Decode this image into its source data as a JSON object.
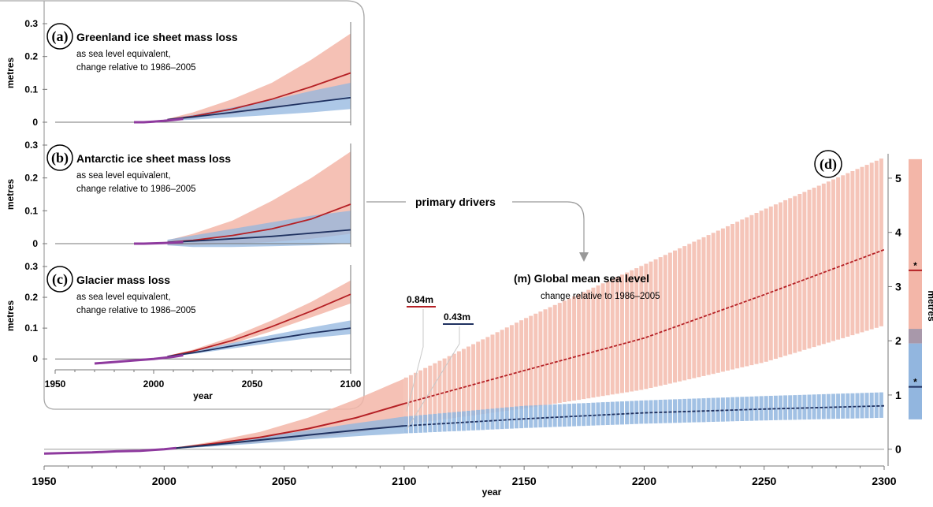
{
  "colors": {
    "high_line": "#b52025",
    "high_band": "#f3b6a8",
    "low_line": "#1f3160",
    "low_band": "#92b6df",
    "overlap_band": "#a898aa",
    "observed": "#8e3a9e",
    "panel_border": "#a8a8a8"
  },
  "annotations": {
    "primary_drivers": "primary drivers",
    "value_high": "0.84m",
    "value_low": "0.43m",
    "star": "*"
  },
  "chart_data": [
    {
      "id": "a",
      "type": "area",
      "panel_letter": "(a)",
      "title": "Greenland ice sheet mass loss",
      "subtitle": [
        "as sea level equivalent,",
        "change relative to 1986–2005"
      ],
      "ylabel": "metres",
      "xlabel": "",
      "xlim": [
        1950,
        2100
      ],
      "ylim": [
        0,
        0.3
      ],
      "xticks": [
        1950,
        2000,
        2050,
        2100
      ],
      "yticks": [
        0,
        0.1,
        0.2,
        0.3
      ],
      "ytick_labels": [
        "0",
        "0.1",
        "0.2",
        "0.3"
      ],
      "observed": {
        "x": [
          1990,
          1995,
          2000,
          2005,
          2010,
          2015
        ],
        "y": [
          0.0,
          0.0,
          0.002,
          0.004,
          0.007,
          0.01
        ]
      },
      "series": [
        {
          "x": [
            2007,
            2020,
            2040,
            2060,
            2080,
            2100
          ],
          "y": [
            0.008,
            0.018,
            0.04,
            0.07,
            0.108,
            0.15
          ],
          "lower": [
            0.006,
            0.012,
            0.025,
            0.04,
            0.06,
            0.08
          ],
          "upper": [
            0.01,
            0.03,
            0.07,
            0.12,
            0.19,
            0.27
          ]
        },
        {
          "x": [
            2007,
            2020,
            2040,
            2060,
            2080,
            2100
          ],
          "y": [
            0.008,
            0.016,
            0.03,
            0.045,
            0.06,
            0.075
          ],
          "lower": [
            0.004,
            0.008,
            0.015,
            0.022,
            0.03,
            0.04
          ],
          "upper": [
            0.01,
            0.022,
            0.045,
            0.068,
            0.095,
            0.12
          ]
        }
      ]
    },
    {
      "id": "b",
      "type": "area",
      "panel_letter": "(b)",
      "title": "Antarctic ice sheet mass loss",
      "subtitle": [
        "as sea level equivalent,",
        "change relative to 1986–2005"
      ],
      "ylabel": "metres",
      "xlabel": "",
      "xlim": [
        1950,
        2100
      ],
      "ylim": [
        0,
        0.3
      ],
      "xticks": [
        1950,
        2000,
        2050,
        2100
      ],
      "yticks": [
        0,
        0.1,
        0.2,
        0.3
      ],
      "ytick_labels": [
        "0",
        "0.1",
        "0.2",
        "0.3"
      ],
      "observed": {
        "x": [
          1990,
          1995,
          2000,
          2005,
          2010,
          2015
        ],
        "y": [
          0.0,
          0.0,
          0.001,
          0.002,
          0.003,
          0.005
        ]
      },
      "series": [
        {
          "x": [
            2007,
            2020,
            2040,
            2060,
            2080,
            2100
          ],
          "y": [
            0.004,
            0.01,
            0.025,
            0.045,
            0.075,
            0.12
          ],
          "lower": [
            -0.005,
            -0.005,
            0.0,
            0.005,
            0.015,
            0.03
          ],
          "upper": [
            0.01,
            0.03,
            0.07,
            0.13,
            0.2,
            0.28
          ]
        },
        {
          "x": [
            2007,
            2020,
            2040,
            2060,
            2080,
            2100
          ],
          "y": [
            0.004,
            0.008,
            0.015,
            0.022,
            0.032,
            0.042
          ],
          "lower": [
            -0.005,
            -0.01,
            -0.01,
            -0.008,
            -0.005,
            0.0
          ],
          "upper": [
            0.012,
            0.025,
            0.045,
            0.065,
            0.085,
            0.1
          ]
        }
      ]
    },
    {
      "id": "c",
      "type": "area",
      "panel_letter": "(c)",
      "title": "Glacier mass loss",
      "subtitle": [
        "as sea level equivalent,",
        "change relative to 1986–2005"
      ],
      "ylabel": "metres",
      "xlabel": "year",
      "xlim": [
        1950,
        2100
      ],
      "ylim": [
        -0.02,
        0.3
      ],
      "xticks": [
        1950,
        2000,
        2050,
        2100
      ],
      "yticks": [
        0,
        0.1,
        0.2,
        0.3
      ],
      "ytick_labels": [
        "0",
        "0.1",
        "0.2",
        "0.3"
      ],
      "observed": {
        "x": [
          1970,
          1980,
          1990,
          2000,
          2010,
          2015
        ],
        "y": [
          -0.015,
          -0.01,
          -0.005,
          0.0,
          0.007,
          0.012
        ]
      },
      "series": [
        {
          "x": [
            2007,
            2020,
            2040,
            2060,
            2080,
            2100
          ],
          "y": [
            0.008,
            0.025,
            0.06,
            0.105,
            0.155,
            0.21
          ],
          "lower": [
            0.006,
            0.022,
            0.05,
            0.09,
            0.135,
            0.18
          ],
          "upper": [
            0.01,
            0.03,
            0.072,
            0.125,
            0.185,
            0.255
          ]
        },
        {
          "x": [
            2007,
            2020,
            2040,
            2060,
            2080,
            2100
          ],
          "y": [
            0.008,
            0.02,
            0.042,
            0.064,
            0.084,
            0.1
          ],
          "lower": [
            0.006,
            0.016,
            0.034,
            0.052,
            0.068,
            0.08
          ],
          "upper": [
            0.01,
            0.025,
            0.052,
            0.078,
            0.102,
            0.125
          ]
        }
      ]
    },
    {
      "id": "d",
      "type": "area",
      "panel_letter": "(d)",
      "title": "(m)  Global mean sea level",
      "subtitle": [
        "change relative to 1986–2005"
      ],
      "ylabel": "metres",
      "xlabel": "year",
      "xlim": [
        1950,
        2300
      ],
      "ylim": [
        -0.15,
        5.45
      ],
      "xticks": [
        1950,
        2000,
        2050,
        2100,
        2150,
        2200,
        2250,
        2300
      ],
      "yticks": [
        0,
        1,
        2,
        3,
        4,
        5
      ],
      "ytick_labels": [
        "0",
        "1",
        "2",
        "3",
        "4",
        "5"
      ],
      "observed": {
        "x": [
          1950,
          1960,
          1970,
          1980,
          1990,
          2000,
          2005
        ],
        "y": [
          -0.08,
          -0.07,
          -0.06,
          -0.04,
          -0.03,
          0.0,
          0.02
        ]
      },
      "series": [
        {
          "x": [
            2005,
            2020,
            2040,
            2060,
            2080,
            2100,
            2150,
            2200,
            2250,
            2300
          ],
          "y": [
            0.02,
            0.1,
            0.22,
            0.38,
            0.58,
            0.84,
            1.45,
            2.05,
            2.85,
            3.68
          ],
          "lower": [
            0.02,
            0.06,
            0.12,
            0.2,
            0.3,
            0.45,
            0.75,
            1.1,
            1.6,
            2.28
          ],
          "upper": [
            0.03,
            0.14,
            0.32,
            0.58,
            0.92,
            1.3,
            2.4,
            3.4,
            4.42,
            5.38
          ]
        },
        {
          "x": [
            2005,
            2020,
            2040,
            2060,
            2080,
            2100,
            2150,
            2200,
            2250,
            2300
          ],
          "y": [
            0.02,
            0.08,
            0.17,
            0.26,
            0.35,
            0.43,
            0.56,
            0.67,
            0.74,
            0.8
          ],
          "lower": [
            0.01,
            0.05,
            0.11,
            0.18,
            0.24,
            0.29,
            0.39,
            0.47,
            0.53,
            0.58
          ],
          "upper": [
            0.03,
            0.11,
            0.22,
            0.35,
            0.48,
            0.6,
            0.8,
            0.9,
            0.98,
            1.05
          ]
        }
      ],
      "side_bars": {
        "high": {
          "lower": 0.55,
          "upper": 5.35,
          "median": 3.3
        },
        "low": {
          "lower": 0.55,
          "upper": 1.95,
          "median": 1.15
        },
        "overlap": {
          "lower": 1.95,
          "upper": 2.22
        }
      }
    }
  ]
}
